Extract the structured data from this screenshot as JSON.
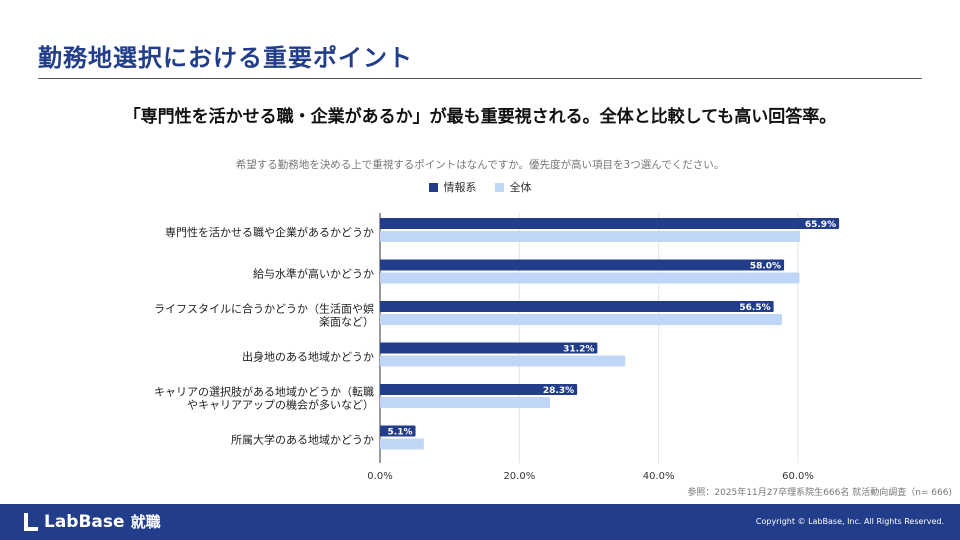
{
  "title": "勤務地選択における重要ポイント",
  "headline": "「専門性を活かせる職・企業があるか」が最も重要視される。全体と比較しても高い回答率。",
  "source": "参照：2025年11月27卒理系院生666名 就活動向調査（n= 666)",
  "footer": {
    "logo": "LabBase",
    "logo_suffix": "就職",
    "copyright": "Copyright © LabBase, Inc. All Rights Reserved."
  },
  "chart_data": {
    "type": "bar",
    "orientation": "horizontal",
    "title": "希望する勤務地を決める上で重視するポイントはなんですか。優先度が高い項目を3つ選んでください。",
    "categories": [
      "専門性を活かせる職や企業があるかどうか",
      "給与水準が高いかどうか",
      "ライフスタイルに合うかどうか（生活面や娯楽面など）",
      "出身地のある地域かどうか",
      "キャリアの選択肢がある地域かどうか（転職やキャリアアップの機会が多いなど）",
      "所属大学のある地域かどうか"
    ],
    "category_lines": [
      [
        "専門性を活かせる職や企業があるかどうか"
      ],
      [
        "給与水準が高いかどうか"
      ],
      [
        "ライフスタイルに合うかどうか（生活面や娯",
        "楽面など）"
      ],
      [
        "出身地のある地域かどうか"
      ],
      [
        "キャリアの選択肢がある地域かどうか（転職",
        "やキャリアアップの機会が多いなど）"
      ],
      [
        "所属大学のある地域かどうか"
      ]
    ],
    "series": [
      {
        "name": "情報系",
        "color": "#223d8a",
        "values": [
          65.9,
          58.0,
          56.5,
          31.2,
          28.3,
          5.1
        ],
        "labels": [
          "65.9%",
          "58.0%",
          "56.5%",
          "31.2%",
          "28.3%",
          "5.1%"
        ]
      },
      {
        "name": "全体",
        "color": "#bfd6f6",
        "values": [
          60.3,
          60.2,
          57.7,
          35.2,
          24.4,
          6.3
        ]
      }
    ],
    "xlim": [
      0,
      65
    ],
    "xticks": [
      0,
      20,
      40,
      60
    ],
    "xtick_labels": [
      "0.0%",
      "20.0%",
      "40.0%",
      "60.0%"
    ],
    "grid": true,
    "legend": "top-center"
  }
}
